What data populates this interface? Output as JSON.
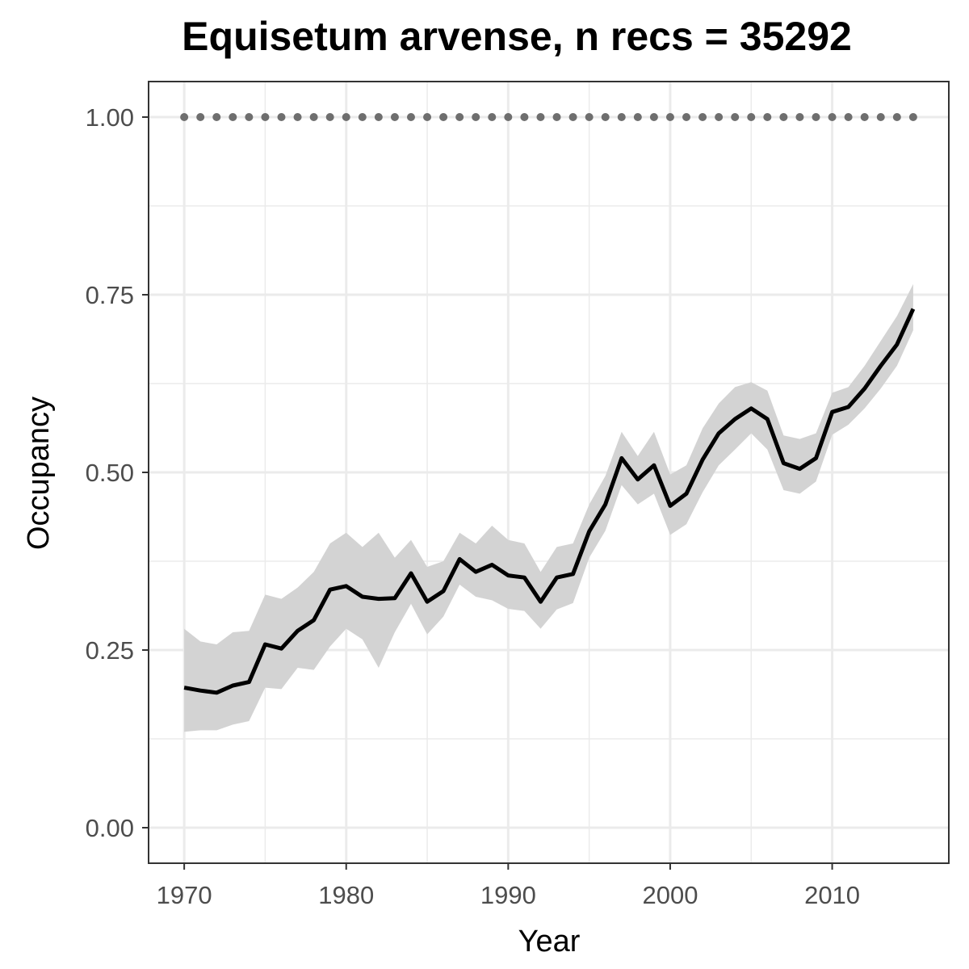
{
  "chart_data": {
    "type": "line",
    "title": "Equisetum arvense, n recs = 35292",
    "xlabel": "Year",
    "ylabel": "Occupancy",
    "xlim": [
      1967.8,
      2017.2
    ],
    "ylim": [
      -0.05,
      1.05
    ],
    "x_ticks": [
      1970,
      1980,
      1990,
      2000,
      2010
    ],
    "x_tick_labels": [
      "1970",
      "1980",
      "1990",
      "2000",
      "2010"
    ],
    "y_ticks": [
      0,
      0.25,
      0.5,
      0.75,
      1.0
    ],
    "y_tick_labels": [
      "0.00",
      "0.25",
      "0.50",
      "0.75",
      "1.00"
    ],
    "grid": true,
    "legend": "none",
    "colors": {
      "line": "#000000",
      "ribbon": "#d3d3d3",
      "dots": "#6e6e6e",
      "grid": "#ebebeb",
      "panel_border": "#333333"
    },
    "x": [
      1970,
      1971,
      1972,
      1973,
      1974,
      1975,
      1976,
      1977,
      1978,
      1979,
      1980,
      1981,
      1982,
      1983,
      1984,
      1985,
      1986,
      1987,
      1988,
      1989,
      1990,
      1991,
      1992,
      1993,
      1994,
      1995,
      1996,
      1997,
      1998,
      1999,
      2000,
      2001,
      2002,
      2003,
      2004,
      2005,
      2006,
      2007,
      2008,
      2009,
      2010,
      2011,
      2012,
      2013,
      2014,
      2015
    ],
    "series": [
      {
        "style": "line",
        "values": [
          0.197,
          0.193,
          0.19,
          0.2,
          0.205,
          0.258,
          0.252,
          0.277,
          0.292,
          0.335,
          0.34,
          0.325,
          0.322,
          0.323,
          0.358,
          0.318,
          0.333,
          0.378,
          0.36,
          0.37,
          0.355,
          0.352,
          0.318,
          0.352,
          0.357,
          0.417,
          0.455,
          0.52,
          0.49,
          0.51,
          0.453,
          0.47,
          0.518,
          0.555,
          0.575,
          0.59,
          0.575,
          0.513,
          0.505,
          0.52,
          0.585,
          0.592,
          0.618,
          0.65,
          0.68,
          0.73
        ],
        "lower": [
          0.135,
          0.137,
          0.137,
          0.145,
          0.15,
          0.197,
          0.195,
          0.225,
          0.222,
          0.255,
          0.28,
          0.265,
          0.225,
          0.275,
          0.315,
          0.272,
          0.297,
          0.342,
          0.325,
          0.32,
          0.308,
          0.305,
          0.28,
          0.307,
          0.316,
          0.38,
          0.418,
          0.482,
          0.455,
          0.47,
          0.412,
          0.427,
          0.472,
          0.51,
          0.532,
          0.555,
          0.532,
          0.475,
          0.47,
          0.487,
          0.553,
          0.567,
          0.59,
          0.618,
          0.65,
          0.7
        ],
        "upper": [
          0.28,
          0.262,
          0.258,
          0.275,
          0.277,
          0.328,
          0.322,
          0.338,
          0.36,
          0.4,
          0.415,
          0.395,
          0.415,
          0.38,
          0.405,
          0.367,
          0.375,
          0.415,
          0.4,
          0.425,
          0.405,
          0.4,
          0.36,
          0.395,
          0.4,
          0.455,
          0.495,
          0.557,
          0.523,
          0.557,
          0.497,
          0.51,
          0.562,
          0.597,
          0.62,
          0.627,
          0.615,
          0.552,
          0.547,
          0.555,
          0.612,
          0.62,
          0.65,
          0.685,
          0.72,
          0.765
        ]
      },
      {
        "style": "dots",
        "values": [
          1,
          1,
          1,
          1,
          1,
          1,
          1,
          1,
          1,
          1,
          1,
          1,
          1,
          1,
          1,
          1,
          1,
          1,
          1,
          1,
          1,
          1,
          1,
          1,
          1,
          1,
          1,
          1,
          1,
          1,
          1,
          1,
          1,
          1,
          1,
          1,
          1,
          1,
          1,
          1,
          1,
          1,
          1,
          1,
          1,
          1
        ]
      }
    ]
  }
}
